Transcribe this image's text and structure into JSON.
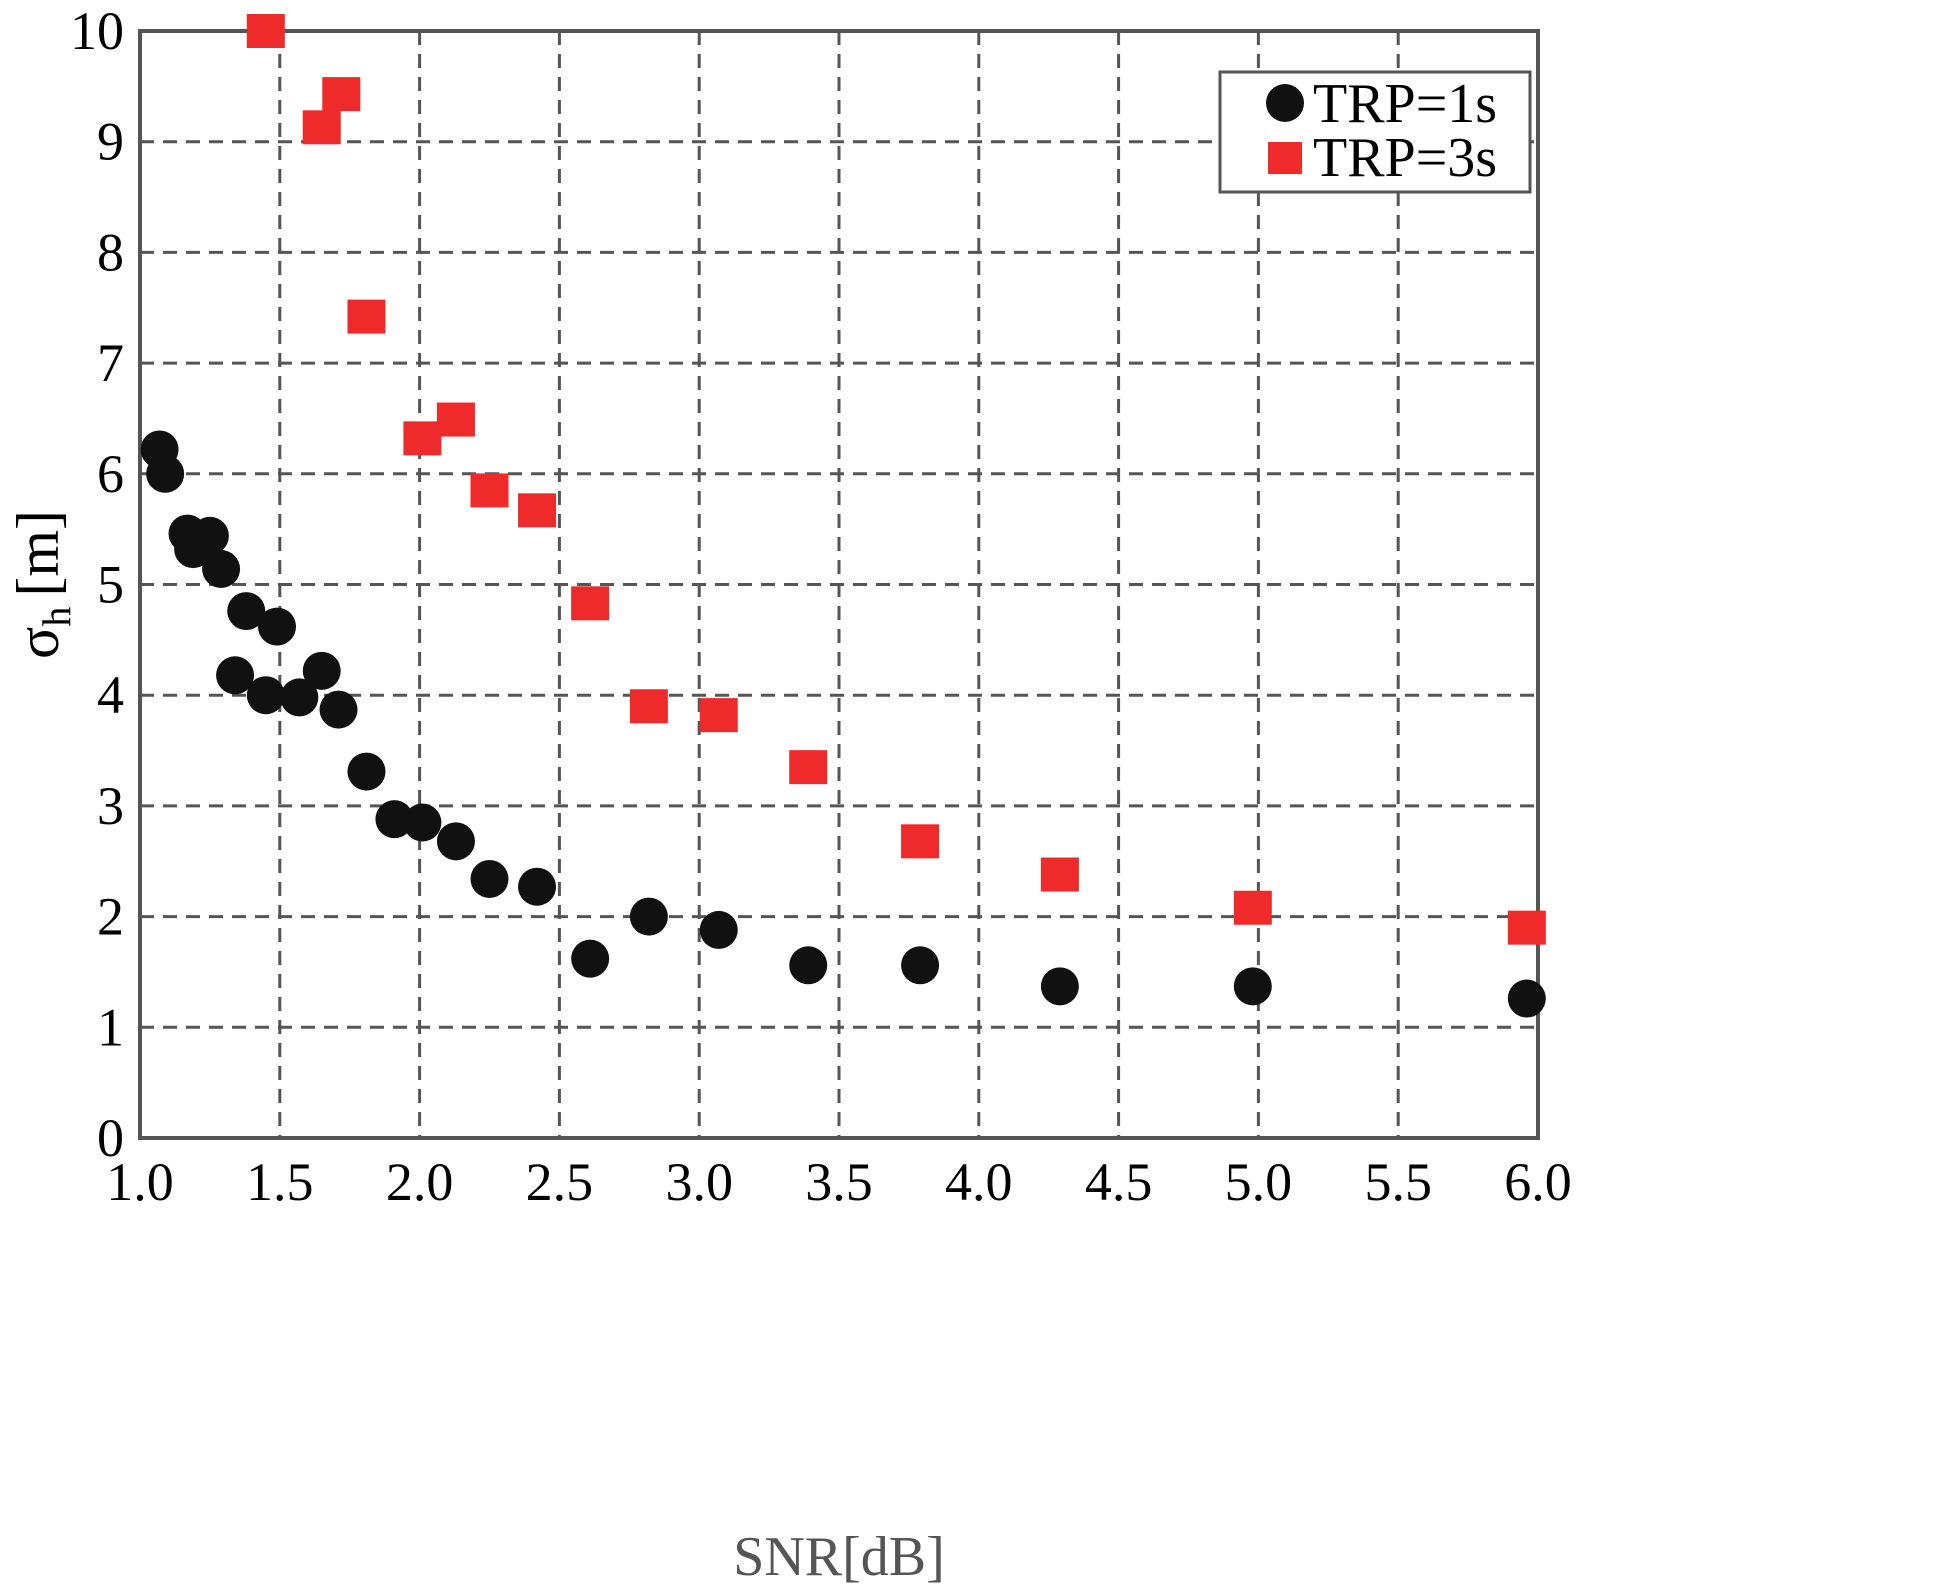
{
  "chart_data": {
    "type": "scatter",
    "xlabel": "SNR[dB]",
    "ylabel": {
      "symbol": "σ",
      "subscript": "h",
      "unit": "[m]"
    },
    "xlim": [
      1.0,
      6.0
    ],
    "ylim": [
      0,
      10
    ],
    "x_ticks": [
      "1.0",
      "1.5",
      "2.0",
      "2.5",
      "3.0",
      "3.5",
      "4.0",
      "4.5",
      "5.0",
      "5.5",
      "6.0"
    ],
    "y_ticks": [
      "0",
      "1",
      "2",
      "3",
      "4",
      "5",
      "6",
      "7",
      "8",
      "9",
      "10"
    ],
    "grid": true,
    "legend_position": "top-right",
    "series": [
      {
        "name": "TRP=1s",
        "marker": "circle",
        "color": "#111111",
        "x": [
          1.07,
          1.09,
          1.17,
          1.19,
          1.25,
          1.29,
          1.34,
          1.38,
          1.45,
          1.49,
          1.57,
          1.65,
          1.71,
          1.81,
          1.91,
          2.01,
          2.13,
          2.25,
          2.42,
          2.61,
          2.82,
          3.07,
          3.39,
          3.79,
          4.29,
          4.98,
          5.96
        ],
        "y": [
          6.22,
          6.0,
          5.46,
          5.32,
          5.44,
          5.14,
          4.18,
          4.76,
          4.0,
          4.62,
          3.98,
          4.22,
          3.87,
          3.31,
          2.88,
          2.85,
          2.68,
          2.34,
          2.27,
          1.62,
          2.0,
          1.88,
          1.56,
          1.56,
          1.37,
          1.37,
          1.26
        ]
      },
      {
        "name": "TRP=3s",
        "marker": "square",
        "color": "#ee2a2a",
        "x": [
          1.45,
          1.65,
          1.72,
          1.81,
          2.01,
          2.13,
          2.25,
          2.42,
          2.61,
          2.82,
          3.07,
          3.39,
          3.79,
          4.29,
          4.98,
          5.96
        ],
        "y": [
          10.0,
          9.13,
          9.43,
          7.42,
          6.32,
          6.49,
          5.85,
          5.67,
          4.83,
          3.9,
          3.82,
          3.35,
          2.68,
          2.38,
          2.08,
          1.9
        ]
      }
    ]
  }
}
